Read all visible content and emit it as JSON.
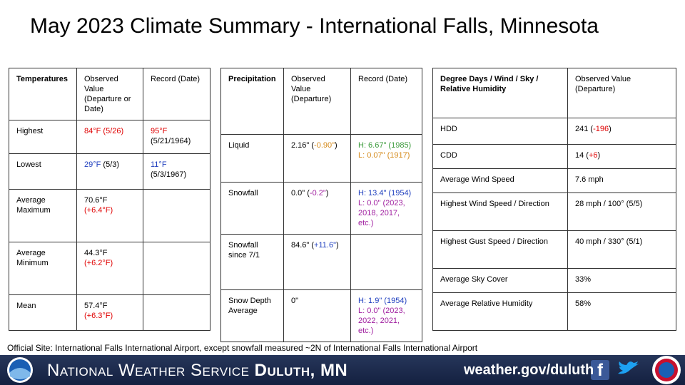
{
  "title": "May 2023 Climate Summary - International Falls, Minnesota",
  "temperatures": {
    "header": [
      "Temperatures",
      "Observed Value (Departure or Date)",
      "Record (Date)"
    ],
    "rows": [
      [
        "Highest",
        [
          {
            "text": "84°F (5/26)",
            "color": "#e00000"
          }
        ],
        [
          {
            "text": "95°F",
            "color": "#e00000"
          },
          {
            "text": " (5/21/1964)"
          }
        ]
      ],
      [
        "Lowest",
        [
          {
            "text": "29°F",
            "color": "#1f3fbf"
          },
          {
            "text": " (5/3)"
          }
        ],
        [
          {
            "text": "11°F",
            "color": "#1f3fbf"
          },
          {
            "text": " (5/3/1967)"
          }
        ]
      ],
      [
        "Average Maximum",
        [
          {
            "text": "70.6°F "
          },
          {
            "text": "(+6.4°F)",
            "color": "#e00000"
          }
        ],
        ""
      ],
      [
        "Average Minimum",
        [
          {
            "text": "44.3°F "
          },
          {
            "text": "(+6.2°F)",
            "color": "#e00000"
          }
        ],
        ""
      ],
      [
        "Mean",
        [
          {
            "text": "57.4°F "
          },
          {
            "text": "(+6.3°F)",
            "color": "#e00000"
          }
        ],
        ""
      ]
    ]
  },
  "precipitation": {
    "header": [
      "Precipitation",
      "Observed Value (Departure)",
      "Record (Date)"
    ],
    "rows": [
      [
        "Liquid",
        [
          {
            "text": "2.16\" ("
          },
          {
            "text": "-0.90\"",
            "color": "#d58a1a"
          },
          {
            "text": ")"
          }
        ],
        [
          {
            "text": "H: 6.67\" (1985)",
            "color": "#3a9a3a"
          },
          {
            "text": " L: 0.07\" (1917)",
            "color": "#d58a1a"
          }
        ]
      ],
      [
        "Snowfall",
        [
          {
            "text": "0.0\" ("
          },
          {
            "text": "-0.2\"",
            "color": "#a020a0"
          },
          {
            "text": ")"
          }
        ],
        [
          {
            "text": "H: 13.4\" (1954)",
            "color": "#1f3fbf"
          },
          {
            "text": " L: 0.0\" (2023, 2018, 2017, etc.)",
            "color": "#a020a0"
          }
        ]
      ],
      [
        "Snowfall since 7/1",
        [
          {
            "text": "84.6\" ("
          },
          {
            "text": "+11.6\"",
            "color": "#1f3fbf"
          },
          {
            "text": ")"
          }
        ],
        ""
      ],
      [
        "Snow Depth Average",
        "0\"",
        [
          {
            "text": "H: 1.9\" (1954)",
            "color": "#1f3fbf"
          },
          {
            "text": " L: 0.0\" (2023, 2022, 2021, etc.)",
            "color": "#a020a0"
          }
        ]
      ]
    ]
  },
  "degree_days": {
    "header": [
      "Degree Days / Wind / Sky / Relative Humidity",
      "Observed Value (Departure)"
    ],
    "rows": [
      [
        "HDD",
        [
          {
            "text": "241 ("
          },
          {
            "text": "-196",
            "color": "#e00000"
          },
          {
            "text": ")"
          }
        ]
      ],
      [
        "CDD",
        [
          {
            "text": "14 ("
          },
          {
            "text": "+6",
            "color": "#e00000"
          },
          {
            "text": ")"
          }
        ]
      ],
      [
        "Average Wind Speed",
        "7.6 mph"
      ],
      [
        "Highest Wind Speed / Direction",
        "28 mph / 100° (5/5)"
      ],
      [
        "Highest Gust Speed / Direction",
        "40 mph / 330° (5/1)"
      ],
      [
        "Average Sky Cover",
        "33%"
      ],
      [
        "Average Relative Humidity",
        "58%"
      ]
    ]
  },
  "footnote": "Official Site: International Falls International Airport, except snowfall measured ~2N of International Falls International Airport",
  "banner": {
    "agency": "National Weather Service",
    "office": "Duluth, MN",
    "url": "weather.gov/duluth"
  }
}
